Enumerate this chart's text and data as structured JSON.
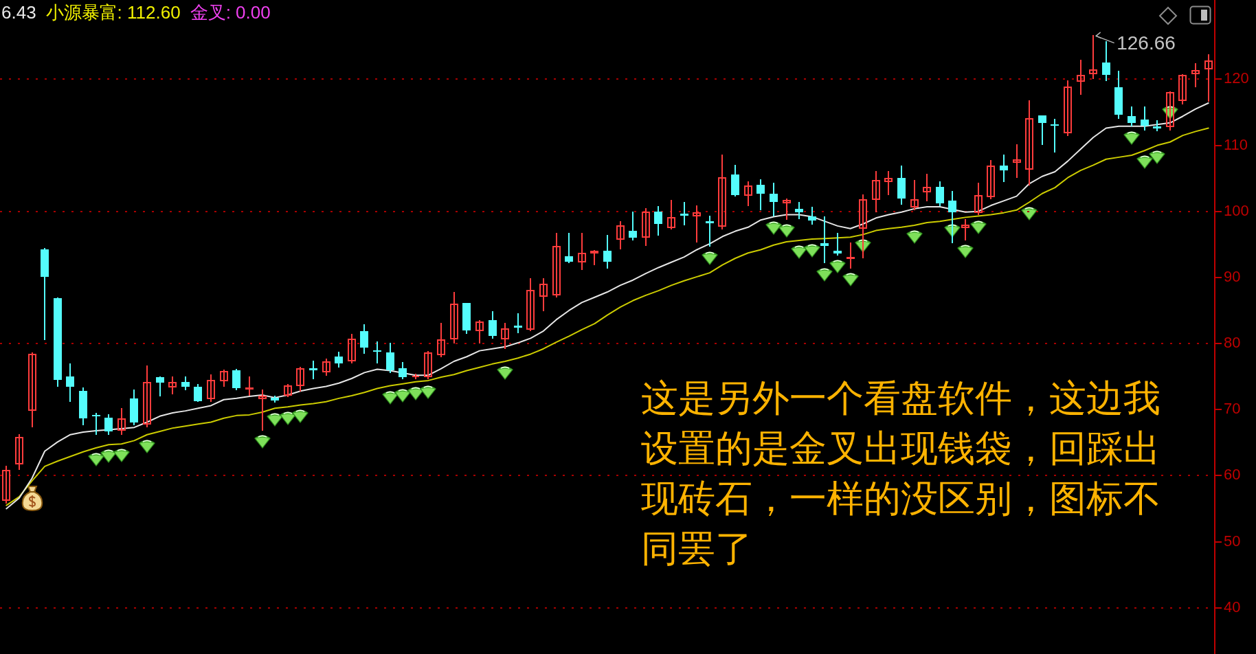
{
  "chart_data": {
    "type": "candlestick",
    "categories": [
      null,
      null,
      null,
      null,
      null,
      null,
      null,
      null,
      null,
      null,
      null,
      null,
      null,
      null,
      null,
      null,
      null,
      null,
      null,
      null,
      null,
      null,
      null,
      null,
      null,
      null,
      null,
      null,
      null,
      null,
      null,
      null,
      null,
      null,
      null,
      null,
      null,
      null,
      null,
      null,
      null,
      null,
      null,
      null,
      null,
      null,
      null,
      null,
      null,
      null,
      null,
      null,
      null,
      null,
      null,
      null,
      null,
      null,
      null,
      null,
      null,
      null,
      null,
      null,
      null,
      null,
      null,
      null,
      null,
      null,
      null,
      null,
      null,
      null,
      null,
      null,
      null,
      null,
      null,
      null,
      null,
      null,
      null,
      null,
      null,
      null,
      null,
      null,
      null,
      null,
      null,
      null,
      null,
      null,
      null
    ],
    "ohlc": [
      [
        56.1,
        61.4,
        55.8,
        60.9
      ],
      [
        61.6,
        66.2,
        60.9,
        65.9
      ],
      [
        69.8,
        78.6,
        67.4,
        78.5
      ],
      [
        94.3,
        94.4,
        80.6,
        90.1
      ],
      [
        86.9,
        86.9,
        73.5,
        74.5
      ],
      [
        75.0,
        76.9,
        71.2,
        73.5
      ],
      [
        72.8,
        73.3,
        67.7,
        68.7
      ],
      [
        69.2,
        69.4,
        66.2,
        69.0
      ],
      [
        68.8,
        69.2,
        66.2,
        66.7
      ],
      [
        66.7,
        70.2,
        66.2,
        68.7
      ],
      [
        71.7,
        73.0,
        67.7,
        68.0
      ],
      [
        67.7,
        76.6,
        67.4,
        74.2
      ],
      [
        74.9,
        75.0,
        72.0,
        74.1
      ],
      [
        73.3,
        75.0,
        72.4,
        74.2
      ],
      [
        74.2,
        75.0,
        73.0,
        73.5
      ],
      [
        73.5,
        73.8,
        71.2,
        71.3
      ],
      [
        71.5,
        75.3,
        71.2,
        74.5
      ],
      [
        74.2,
        76.0,
        73.5,
        75.9
      ],
      [
        75.9,
        76.1,
        73.0,
        73.2
      ],
      [
        73.0,
        75.0,
        72.2,
        73.4
      ],
      [
        71.5,
        73.0,
        66.9,
        72.2
      ],
      [
        71.8,
        72.0,
        71.1,
        71.4
      ],
      [
        72.1,
        73.8,
        71.9,
        73.7
      ],
      [
        73.5,
        76.4,
        72.8,
        76.3
      ],
      [
        76.3,
        77.4,
        74.6,
        76.0
      ],
      [
        75.6,
        77.7,
        75.2,
        77.4
      ],
      [
        78.0,
        78.7,
        76.4,
        77.0
      ],
      [
        77.3,
        81.4,
        77.0,
        80.8
      ],
      [
        81.9,
        82.9,
        78.5,
        79.4
      ],
      [
        79.0,
        80.3,
        77.0,
        78.8
      ],
      [
        78.7,
        80.1,
        75.6,
        75.9
      ],
      [
        76.3,
        77.1,
        74.7,
        74.9
      ],
      [
        74.9,
        75.4,
        74.6,
        75.2
      ],
      [
        74.9,
        78.8,
        74.7,
        78.7
      ],
      [
        78.2,
        83.1,
        78.0,
        80.7
      ],
      [
        80.6,
        87.7,
        80.1,
        86.1
      ],
      [
        86.1,
        86.1,
        81.5,
        82.0
      ],
      [
        81.8,
        83.5,
        80.1,
        83.4
      ],
      [
        83.5,
        84.8,
        80.8,
        81.1
      ],
      [
        80.6,
        83.1,
        79.2,
        82.3
      ],
      [
        82.7,
        84.5,
        81.6,
        82.4
      ],
      [
        82.0,
        89.8,
        81.9,
        88.2
      ],
      [
        87.0,
        89.8,
        84.9,
        89.1
      ],
      [
        87.2,
        96.7,
        87.0,
        94.8
      ],
      [
        93.2,
        96.7,
        92.2,
        92.4
      ],
      [
        92.2,
        96.7,
        91.2,
        93.8
      ],
      [
        93.6,
        94.1,
        91.9,
        94.1
      ],
      [
        94.0,
        96.4,
        91.4,
        92.4
      ],
      [
        95.7,
        98.5,
        94.3,
        97.9
      ],
      [
        97.1,
        99.9,
        95.7,
        96.0
      ],
      [
        96.0,
        100.4,
        94.8,
        100.0
      ],
      [
        100.0,
        100.8,
        96.4,
        98.1
      ],
      [
        97.4,
        101.7,
        97.3,
        99.2
      ],
      [
        99.7,
        101.4,
        97.9,
        99.3
      ],
      [
        99.2,
        100.9,
        95.3,
        99.9
      ],
      [
        98.5,
        99.3,
        94.7,
        98.2
      ],
      [
        97.6,
        108.5,
        97.3,
        105.2
      ],
      [
        105.6,
        107.0,
        102.3,
        102.5
      ],
      [
        102.3,
        104.5,
        100.9,
        104.0
      ],
      [
        104.0,
        104.8,
        100.2,
        102.7
      ],
      [
        102.7,
        104.3,
        99.3,
        101.4
      ],
      [
        101.2,
        101.9,
        98.8,
        101.8
      ],
      [
        100.4,
        101.4,
        98.9,
        99.9
      ],
      [
        99.2,
        100.6,
        98.0,
        98.6
      ],
      [
        95.2,
        99.2,
        92.2,
        94.8
      ],
      [
        94.0,
        96.7,
        93.4,
        93.6
      ],
      [
        92.7,
        95.2,
        91.4,
        93.2
      ],
      [
        97.3,
        102.5,
        92.9,
        101.9
      ],
      [
        101.7,
        106.1,
        99.9,
        104.8
      ],
      [
        104.4,
        106.1,
        102.5,
        105.1
      ],
      [
        105.1,
        106.9,
        101.1,
        101.9
      ],
      [
        100.5,
        104.7,
        100.2,
        101.9
      ],
      [
        102.8,
        105.6,
        101.6,
        103.8
      ],
      [
        103.7,
        104.5,
        100.9,
        101.2
      ],
      [
        101.6,
        103.0,
        95.2,
        99.9
      ],
      [
        97.4,
        98.8,
        95.7,
        98.0
      ],
      [
        99.7,
        104.3,
        99.5,
        102.5
      ],
      [
        102.1,
        107.7,
        101.9,
        107.0
      ],
      [
        106.9,
        108.5,
        104.5,
        106.2
      ],
      [
        107.3,
        110.1,
        105.1,
        107.9
      ],
      [
        106.3,
        116.8,
        104.0,
        114.2
      ],
      [
        114.5,
        114.5,
        110.1,
        113.4
      ],
      [
        113.2,
        114.0,
        109.0,
        113.0
      ],
      [
        111.8,
        119.8,
        111.5,
        118.9
      ],
      [
        119.6,
        122.9,
        117.7,
        120.7
      ],
      [
        120.7,
        126.66,
        120.1,
        121.5
      ],
      [
        122.5,
        125.7,
        119.8,
        120.7
      ],
      [
        118.8,
        121.2,
        114.1,
        114.6
      ],
      [
        114.4,
        115.8,
        112.9,
        113.4
      ],
      [
        113.9,
        115.8,
        112.3,
        113.0
      ],
      [
        112.9,
        113.7,
        112.2,
        112.6
      ],
      [
        112.7,
        118.1,
        112.3,
        118.1
      ],
      [
        116.7,
        120.7,
        116.2,
        120.7
      ],
      [
        120.7,
        122.4,
        118.8,
        121.4
      ],
      [
        121.4,
        123.7,
        116.7,
        122.9
      ]
    ],
    "colors": [
      "#ff3c3c",
      "#ff3c3c",
      "#ff3c3c",
      "#54fcfc",
      "#54fcfc",
      "#54fcfc",
      "#54fcfc",
      "#54fcfc",
      "#54fcfc",
      "#ff3c3c",
      "#54fcfc",
      "#ff3c3c",
      "#54fcfc",
      "#ff3c3c",
      "#54fcfc",
      "#54fcfc",
      "#ff3c3c",
      "#ff3c3c",
      "#54fcfc",
      "#ff3c3c",
      "#ff3c3c",
      "#54fcfc",
      "#ff3c3c",
      "#ff3c3c",
      "#54fcfc",
      "#ff3c3c",
      "#54fcfc",
      "#ff3c3c",
      "#54fcfc",
      "#54fcfc",
      "#54fcfc",
      "#54fcfc",
      "#ff3c3c",
      "#ff3c3c",
      "#ff3c3c",
      "#ff3c3c",
      "#54fcfc",
      "#ff3c3c",
      "#54fcfc",
      "#ff3c3c",
      "#54fcfc",
      "#ff3c3c",
      "#ff3c3c",
      "#ff3c3c",
      "#54fcfc",
      "#ff3c3c",
      "#ff3c3c",
      "#54fcfc",
      "#ff3c3c",
      "#54fcfc",
      "#ff3c3c",
      "#54fcfc",
      "#ff3c3c",
      "#54fcfc",
      "#ff3c3c",
      "#54fcfc",
      "#ff3c3c",
      "#54fcfc",
      "#ff3c3c",
      "#54fcfc",
      "#54fcfc",
      "#ff3c3c",
      "#54fcfc",
      "#54fcfc",
      "#54fcfc",
      "#54fcfc",
      "#ff3c3c",
      "#ff3c3c",
      "#ff3c3c",
      "#ff3c3c",
      "#54fcfc",
      "#ff3c3c",
      "#ff3c3c",
      "#54fcfc",
      "#54fcfc",
      "#ff3c3c",
      "#ff3c3c",
      "#ff3c3c",
      "#54fcfc",
      "#ff3c3c",
      "#ff3c3c",
      "#54fcfc",
      "#54fcfc",
      "#ff3c3c",
      "#ff3c3c",
      "#ff3c3c",
      "#54fcfc",
      "#54fcfc",
      "#54fcfc",
      "#54fcfc",
      "#54fcfc",
      "#ff3c3c",
      "#ff3c3c",
      "#ff3c3c",
      "#ff3c3c"
    ],
    "series": [
      {
        "type": "line",
        "color": "#e6e6e6",
        "values": [
          55.0,
          56.6,
          59.6,
          63.7,
          65.1,
          66.2,
          66.6,
          66.8,
          null,
          67.1,
          67.3,
          68.1,
          69.0,
          69.5,
          69.8,
          70.2,
          70.6,
          71.5,
          71.7,
          72.0,
          72.2,
          71.8,
          72.2,
          72.8,
          73.2,
          73.5,
          74.0,
          74.7,
          75.6,
          76.1,
          75.9,
          null,
          75.2,
          75.2,
          76.2,
          77.3,
          78.0,
          78.9,
          79.2,
          79.5,
          80.1,
          80.8,
          81.9,
          83.6,
          85.0,
          86.2,
          87.0,
          87.8,
          88.8,
          89.6,
          90.6,
          91.5,
          92.3,
          93.1,
          94.2,
          95.1,
          96.2,
          97.0,
          97.6,
          98.7,
          99.2,
          99.5,
          99.5,
          99.2,
          98.5,
          97.8,
          97.4,
          98.1,
          99.0,
          99.5,
          99.9,
          100.4,
          100.7,
          100.7,
          null,
          99.9,
          100.0,
          100.9,
          101.6,
          102.3,
          104.2,
          105.3,
          106.0,
          107.6,
          109.4,
          111.2,
          112.6,
          112.9,
          112.9,
          112.9,
          null,
          113.4,
          114.4,
          115.5,
          116.4
        ]
      },
      {
        "type": "line",
        "color": "#cccc00",
        "values": [
          55.5,
          56.8,
          59.2,
          61.4,
          62.2,
          62.9,
          63.6,
          64.2,
          64.7,
          64.8,
          65.3,
          66.2,
          66.7,
          67.2,
          67.5,
          67.8,
          68.1,
          68.7,
          69.1,
          69.2,
          69.6,
          70.2,
          70.4,
          70.7,
          70.9,
          71.2,
          71.7,
          72.1,
          72.6,
          73.2,
          73.6,
          73.9,
          74.2,
          74.4,
          74.9,
          75.3,
          75.9,
          76.4,
          76.9,
          77.3,
          77.8,
          78.4,
          79.2,
          80.2,
          81.1,
          82.1,
          83.0,
          84.3,
          85.5,
          86.5,
          87.3,
          88.0,
          88.8,
          89.5,
          90.1,
          90.7,
          91.9,
          92.9,
          93.7,
          94.2,
          94.9,
          95.4,
          95.6,
          95.8,
          95.9,
          96.0,
          96.1,
          96.5,
          97.1,
          97.4,
          97.6,
          97.9,
          98.3,
          98.5,
          98.8,
          99.1,
          99.3,
          99.5,
          99.8,
          100.2,
          101.4,
          102.7,
          103.6,
          105.1,
          106.2,
          107.0,
          107.9,
          108.2,
          108.5,
          109.2,
          110.0,
          110.5,
          111.5,
          112.1,
          112.6
        ]
      }
    ],
    "ylim": [
      33,
      132
    ],
    "yticks": [
      40,
      50,
      60,
      70,
      80,
      90,
      100,
      110,
      120
    ],
    "grid": "y",
    "tick_labels": "y",
    "marker": "none",
    "line_style": "solid",
    "annotations": [
      "6.43",
      "小源暴富: 112.60",
      "金叉: 0.00",
      "这是另外一个看盘软件，这边我设置的是金叉出现钱袋，回踩出现砖石，一样的没区别，图标不同罢了",
      "126.66"
    ]
  }
}
